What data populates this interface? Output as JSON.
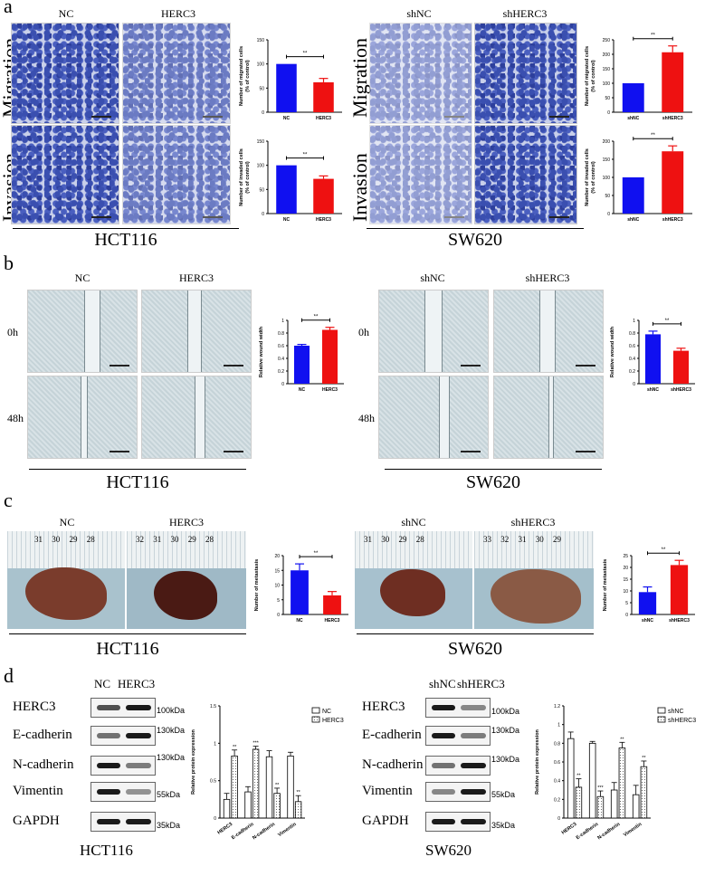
{
  "panels": {
    "a": {
      "letter": "a",
      "left": {
        "cols": [
          "NC",
          "HERC3"
        ],
        "rows": [
          "Migration",
          "Invasion"
        ],
        "cell": "HCT116"
      },
      "right": {
        "cols": [
          "shNC",
          "shHERC3"
        ],
        "rows": [
          "Migration",
          "Invasion"
        ],
        "cell": "SW620"
      }
    },
    "b": {
      "letter": "b",
      "left": {
        "cols": [
          "NC",
          "HERC3"
        ],
        "rows": [
          "0h",
          "48h"
        ],
        "cell": "HCT116"
      },
      "right": {
        "cols": [
          "shNC",
          "shHERC3"
        ],
        "rows": [
          "0h",
          "48h"
        ],
        "cell": "SW620"
      }
    },
    "c": {
      "letter": "c",
      "left": {
        "cols": [
          "NC",
          "HERC3"
        ],
        "cell": "HCT116",
        "ruler_left": "31 30 29 28",
        "ruler_right": "32 31 30 29 28"
      },
      "right": {
        "cols": [
          "shNC",
          "shHERC3"
        ],
        "cell": "SW620",
        "ruler_left": "31 30 29 28",
        "ruler_right": "33 32 31 30 29"
      }
    },
    "d": {
      "letter": "d",
      "left": {
        "cols": [
          "NC",
          "HERC3"
        ],
        "cell": "HCT116",
        "proteins": [
          "HERC3",
          "E-cadherin",
          "N-cadherin",
          "Vimentin",
          "GAPDH"
        ],
        "markers": [
          "100kDa",
          "130kDa",
          "130kDa",
          "55kDa",
          "35kDa"
        ]
      },
      "right": {
        "cols": [
          "shNC",
          "shHERC3"
        ],
        "cell": "SW620",
        "proteins": [
          "HERC3",
          "E-cadherin",
          "N-cadherin",
          "Vimentin",
          "GAPDH"
        ],
        "markers": [
          "100kDa",
          "130kDa",
          "130kDa",
          "55kDa",
          "35kDa"
        ]
      }
    }
  },
  "chart_data": [
    {
      "id": "a-hct-mig",
      "type": "bar",
      "categories": [
        "NC",
        "HERC3"
      ],
      "values": [
        100,
        62
      ],
      "errors": [
        0,
        8
      ],
      "colors": [
        "#1010f0",
        "#ee1111"
      ],
      "ylabel": "Number of migrated cells\n(% of control)",
      "ylim": [
        0,
        150
      ],
      "yticks": [
        0,
        50,
        100,
        150
      ],
      "sig": "**"
    },
    {
      "id": "a-hct-inv",
      "type": "bar",
      "categories": [
        "NC",
        "HERC3"
      ],
      "values": [
        100,
        72
      ],
      "errors": [
        0,
        6
      ],
      "colors": [
        "#1010f0",
        "#ee1111"
      ],
      "ylabel": "Number of invaded cells\n(% of control)",
      "ylim": [
        0,
        150
      ],
      "yticks": [
        0,
        50,
        100,
        150
      ],
      "sig": "**"
    },
    {
      "id": "a-sw-mig",
      "type": "bar",
      "categories": [
        "shNC",
        "shHERC3"
      ],
      "values": [
        100,
        207
      ],
      "errors": [
        0,
        22
      ],
      "colors": [
        "#1010f0",
        "#ee1111"
      ],
      "ylabel": "Number of migrated cells\n(% of control)",
      "ylim": [
        0,
        250
      ],
      "yticks": [
        0,
        50,
        100,
        150,
        200,
        250
      ],
      "sig": "**"
    },
    {
      "id": "a-sw-inv",
      "type": "bar",
      "categories": [
        "shNC",
        "shHERC3"
      ],
      "values": [
        100,
        172
      ],
      "errors": [
        0,
        15
      ],
      "colors": [
        "#1010f0",
        "#ee1111"
      ],
      "ylabel": "Number of invaded cells\n(% of control)",
      "ylim": [
        0,
        200
      ],
      "yticks": [
        0,
        50,
        100,
        150,
        200
      ],
      "sig": "**"
    },
    {
      "id": "b-hct",
      "type": "bar",
      "categories": [
        "NC",
        "HERC3"
      ],
      "values": [
        0.6,
        0.85
      ],
      "errors": [
        0.02,
        0.04
      ],
      "colors": [
        "#1010f0",
        "#ee1111"
      ],
      "ylabel": "Relative wound width",
      "ylim": [
        0,
        1.0
      ],
      "yticks": [
        0,
        0.2,
        0.4,
        0.6,
        0.8,
        1.0
      ],
      "sig": "**"
    },
    {
      "id": "b-sw",
      "type": "bar",
      "categories": [
        "shNC",
        "shHERC3"
      ],
      "values": [
        0.78,
        0.52
      ],
      "errors": [
        0.05,
        0.04
      ],
      "colors": [
        "#1010f0",
        "#ee1111"
      ],
      "ylabel": "Relative wound width",
      "ylim": [
        0,
        1.0
      ],
      "yticks": [
        0,
        0.2,
        0.4,
        0.6,
        0.8,
        1.0
      ],
      "sig": "**"
    },
    {
      "id": "c-hct",
      "type": "bar",
      "categories": [
        "NC",
        "HERC3"
      ],
      "values": [
        15,
        6.5
      ],
      "errors": [
        2.2,
        1.3
      ],
      "colors": [
        "#1010f0",
        "#ee1111"
      ],
      "ylabel": "Number of metastasis",
      "ylim": [
        0,
        20
      ],
      "yticks": [
        0,
        5,
        10,
        15,
        20
      ],
      "sig": "**"
    },
    {
      "id": "c-sw",
      "type": "bar",
      "categories": [
        "shNC",
        "shHERC3"
      ],
      "values": [
        9.5,
        21
      ],
      "errors": [
        2.2,
        2.0
      ],
      "colors": [
        "#1010f0",
        "#ee1111"
      ],
      "ylabel": "Number of metastasis",
      "ylim": [
        0,
        25
      ],
      "yticks": [
        0,
        5,
        10,
        15,
        20,
        25
      ],
      "sig": "**"
    },
    {
      "id": "d-hct",
      "type": "bar",
      "categories": [
        "HERC3",
        "E-cadherin",
        "N-cadherin",
        "Vimentin"
      ],
      "series": [
        {
          "name": "NC",
          "values": [
            0.25,
            0.35,
            0.82,
            0.83
          ],
          "errors": [
            0.08,
            0.07,
            0.08,
            0.05
          ]
        },
        {
          "name": "HERC3",
          "values": [
            0.83,
            0.92,
            0.33,
            0.22
          ],
          "errors": [
            0.08,
            0.04,
            0.07,
            0.08
          ]
        }
      ],
      "sigs": [
        [
          "",
          "**"
        ],
        [
          "",
          "***"
        ],
        [
          "",
          "**"
        ],
        [
          "",
          "**"
        ]
      ],
      "ylabel": "Relative protein expression",
      "ylim": [
        0,
        1.5
      ],
      "yticks": [
        0.0,
        0.5,
        1.0,
        1.5
      ],
      "legend": "top-right"
    },
    {
      "id": "d-sw",
      "type": "bar",
      "categories": [
        "HERC3",
        "E-cadherin",
        "N-cadherin",
        "Vimentin"
      ],
      "series": [
        {
          "name": "shNC",
          "values": [
            0.85,
            0.8,
            0.3,
            0.25
          ],
          "errors": [
            0.07,
            0.02,
            0.08,
            0.1
          ]
        },
        {
          "name": "shHERC3",
          "values": [
            0.33,
            0.23,
            0.75,
            0.55
          ],
          "errors": [
            0.09,
            0.06,
            0.06,
            0.06
          ]
        }
      ],
      "sigs": [
        [
          "",
          "**"
        ],
        [
          "",
          "***"
        ],
        [
          "",
          "**"
        ],
        [
          "",
          "**"
        ]
      ],
      "ylabel": "Relative protein expression",
      "ylim": [
        0,
        1.2
      ],
      "yticks": [
        0.0,
        0.2,
        0.4,
        0.6,
        0.8,
        1.0,
        1.2
      ],
      "legend": "top-right"
    }
  ]
}
